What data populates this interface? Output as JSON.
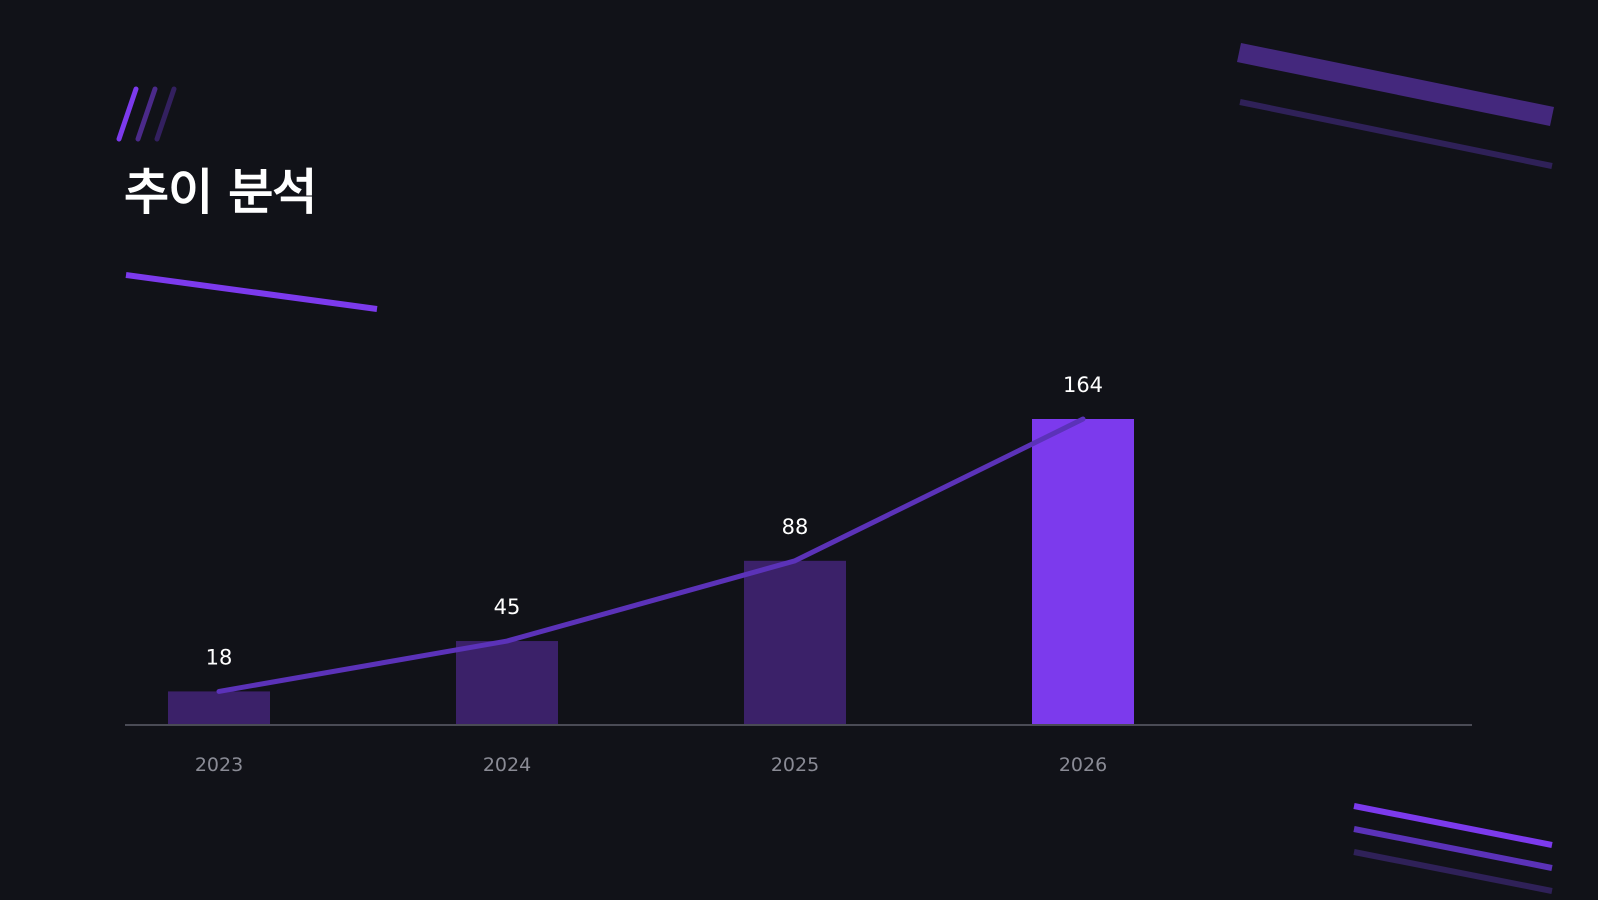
{
  "page": {
    "title": "추이 분석"
  },
  "colors": {
    "background": "#111218",
    "accent": "#7c3aed",
    "bar_muted": "#3b2169",
    "line": "#5b32b8",
    "axis": "#4a4b55",
    "deco_dim": "#2f2158",
    "deco_mid": "#44287d"
  },
  "chart_data": {
    "type": "bar",
    "categories": [
      "2023",
      "2024",
      "2025",
      "2026"
    ],
    "values": [
      18,
      45,
      88,
      164
    ],
    "highlight_index": 3,
    "overlay_line": true,
    "title": "",
    "xlabel": "",
    "ylabel": "",
    "ylim": [
      0,
      164
    ],
    "grid": false
  }
}
